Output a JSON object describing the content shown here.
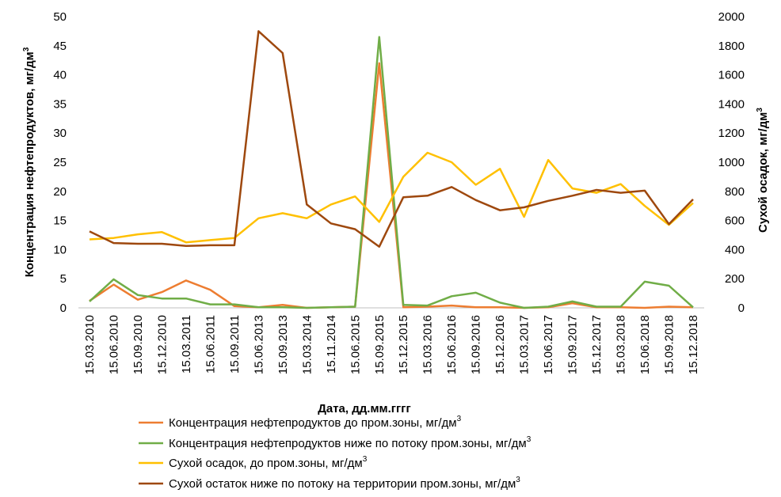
{
  "chart_data": {
    "type": "line",
    "x": [
      "15.03.2010",
      "15.06.2010",
      "15.09.2010",
      "15.12.2010",
      "15.03.2011",
      "15.06.2011",
      "15.09.2011",
      "15.06.2013",
      "15.09.2013",
      "15.03.2014",
      "15.11.2014",
      "15.06.2015",
      "15.09.2015",
      "15.12.2015",
      "15.03.2016",
      "15.06.2016",
      "15.09.2016",
      "15.12.2016",
      "15.03.2017",
      "15.06.2017",
      "15.09.2017",
      "15.12.2017",
      "15.03.2018",
      "15.06.2018",
      "15.09.2018",
      "15.12.2018"
    ],
    "xlabel": "Дата, дд.мм.гггг",
    "ylabel": "Концентрация нефтепродуктов, мг/дм",
    "ylabel_sup": "3",
    "y2label": "Сухой осадок, мг/дм",
    "y2label_sup": "3",
    "ylim": [
      0,
      50
    ],
    "y2lim": [
      0,
      2000
    ],
    "yticks": [
      "0",
      "5",
      "10",
      "15",
      "20",
      "25",
      "30",
      "35",
      "40",
      "45",
      "50"
    ],
    "y2ticks": [
      "0",
      "200",
      "400",
      "600",
      "800",
      "1000",
      "1200",
      "1400",
      "1600",
      "1800",
      "2000"
    ],
    "grid": false,
    "legend_position": "bottom",
    "series": [
      {
        "name": "Концентрация нефтепродуктов до пром.зоны, мг/дм",
        "name_sup": "3",
        "axis": "left",
        "color": "#ED7D31",
        "values": [
          1.2,
          4.0,
          1.4,
          2.7,
          4.7,
          3.1,
          0.3,
          0.1,
          0.5,
          0.0,
          0.1,
          0.2,
          42.0,
          0.1,
          0.2,
          0.4,
          0.1,
          0.1,
          0.0,
          0.1,
          0.8,
          0.1,
          0.1,
          0.0,
          0.2,
          0.1
        ]
      },
      {
        "name": "Концентрация нефтепродуктов ниже по потоку пром.зоны, мг/дм",
        "name_sup": "3",
        "axis": "left",
        "color": "#70AD47",
        "values": [
          1.1,
          4.9,
          2.2,
          1.6,
          1.6,
          0.6,
          0.6,
          0.1,
          0.1,
          0.0,
          0.1,
          0.2,
          46.5,
          0.5,
          0.4,
          2.0,
          2.6,
          0.9,
          0.0,
          0.2,
          1.1,
          0.2,
          0.2,
          4.5,
          3.8,
          0.1
        ]
      },
      {
        "name": "Сухой осадок, до пром.зоны, мг/дм",
        "name_sup": "3",
        "axis": "right",
        "color": "#FFC000",
        "values": [
          470,
          480,
          505,
          520,
          450,
          465,
          480,
          615,
          650,
          615,
          710,
          765,
          590,
          900,
          1065,
          1000,
          845,
          955,
          625,
          1015,
          820,
          790,
          850,
          700,
          570,
          720
        ]
      },
      {
        "name": "Сухой остаток ниже по потоку на территории пром.зоны, мг/дм",
        "name_sup": "3",
        "axis": "right",
        "color": "#9E480E",
        "values": [
          525,
          445,
          440,
          440,
          425,
          430,
          430,
          1900,
          1750,
          710,
          580,
          540,
          420,
          760,
          770,
          830,
          740,
          670,
          690,
          735,
          770,
          810,
          790,
          805,
          575,
          745
        ]
      }
    ]
  }
}
